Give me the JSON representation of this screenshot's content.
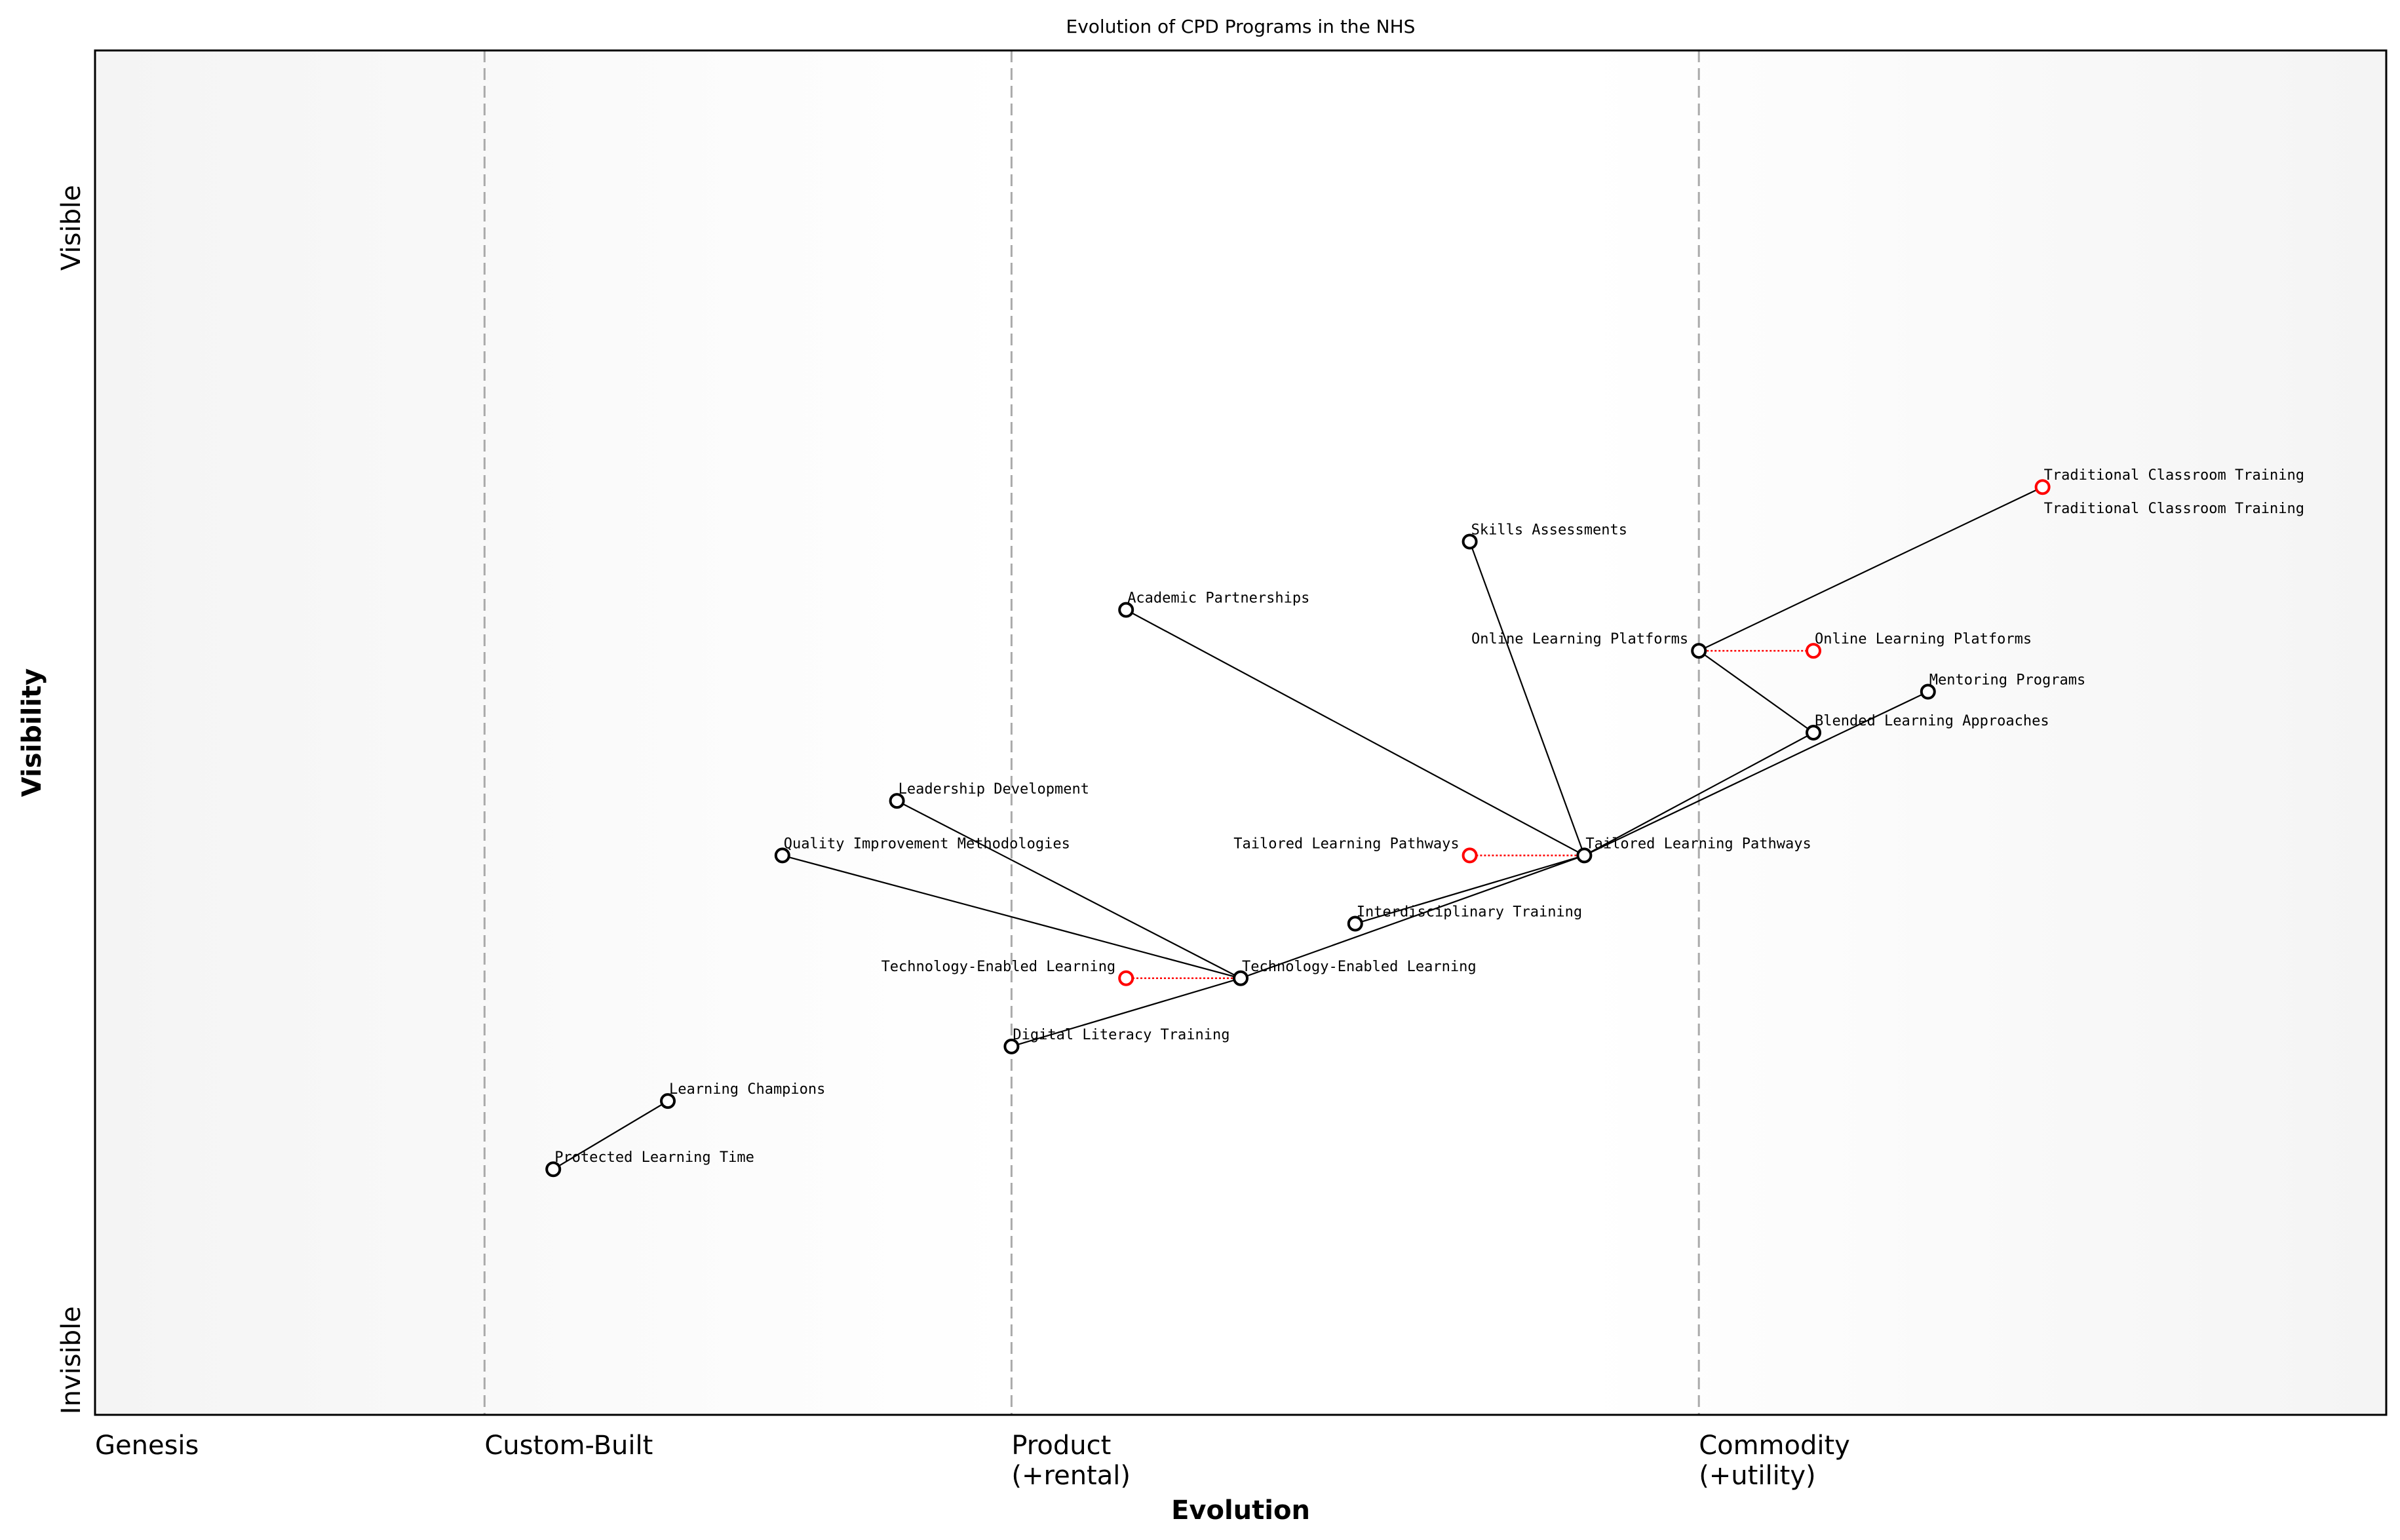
{
  "chart_data": {
    "type": "scatter",
    "subtype": "wardley-map",
    "title": "Evolution of CPD Programs in the NHS",
    "xlabel": "Evolution",
    "ylabel": "Visibility",
    "xlim": [
      0,
      1
    ],
    "ylim": [
      0,
      1
    ],
    "grid": false,
    "x_stages": [
      {
        "label": "Genesis",
        "x": 0.0
      },
      {
        "label": "Custom-Built",
        "x": 0.17
      },
      {
        "label": "Product\n(+rental)",
        "x": 0.4
      },
      {
        "label": "Commodity\n(+utility)",
        "x": 0.7
      }
    ],
    "y_ticks": [
      {
        "label": "Visible",
        "y": 0.87
      },
      {
        "label": "Invisible",
        "y": 0.04
      }
    ],
    "colors": {
      "component": "#000000",
      "evolve": "#ff0000",
      "stage_line": "#aaaaaa",
      "background_edge": "#f4f4f4"
    },
    "components": [
      {
        "name": "Traditional Classroom Training",
        "x": 0.85,
        "y": 0.68
      },
      {
        "name": "Skills Assessments",
        "x": 0.6,
        "y": 0.64
      },
      {
        "name": "Academic Partnerships",
        "x": 0.45,
        "y": 0.59
      },
      {
        "name": "Online Learning Platforms",
        "x": 0.7,
        "y": 0.56
      },
      {
        "name": "Mentoring Programs",
        "x": 0.8,
        "y": 0.53
      },
      {
        "name": "Blended Learning Approaches",
        "x": 0.75,
        "y": 0.5
      },
      {
        "name": "Leadership Development",
        "x": 0.35,
        "y": 0.45
      },
      {
        "name": "Quality Improvement Methodologies",
        "x": 0.3,
        "y": 0.41
      },
      {
        "name": "Tailored Learning Pathways",
        "x": 0.65,
        "y": 0.41
      },
      {
        "name": "Interdisciplinary Training",
        "x": 0.55,
        "y": 0.36
      },
      {
        "name": "Technology-Enabled Learning",
        "x": 0.5,
        "y": 0.32
      },
      {
        "name": "Digital Literacy Training",
        "x": 0.4,
        "y": 0.27
      },
      {
        "name": "Learning Champions",
        "x": 0.25,
        "y": 0.23
      },
      {
        "name": "Protected Learning Time",
        "x": 0.2,
        "y": 0.18
      }
    ],
    "evolutions": [
      {
        "name": "Traditional Classroom Training",
        "from_x": 0.85,
        "to_x": 0.85,
        "y": 0.68
      },
      {
        "name": "Online Learning Platforms",
        "from_x": 0.7,
        "to_x": 0.75,
        "y": 0.56
      },
      {
        "name": "Tailored Learning Pathways",
        "from_x": 0.65,
        "to_x": 0.6,
        "y": 0.41
      },
      {
        "name": "Technology-Enabled Learning",
        "from_x": 0.5,
        "to_x": 0.45,
        "y": 0.32
      }
    ],
    "links": [
      [
        "Online Learning Platforms",
        "Traditional Classroom Training"
      ],
      [
        "Online Learning Platforms",
        "Blended Learning Approaches"
      ],
      [
        "Tailored Learning Pathways",
        "Blended Learning Approaches"
      ],
      [
        "Tailored Learning Pathways",
        "Mentoring Programs"
      ],
      [
        "Tailored Learning Pathways",
        "Skills Assessments"
      ],
      [
        "Tailored Learning Pathways",
        "Academic Partnerships"
      ],
      [
        "Tailored Learning Pathways",
        "Interdisciplinary Training"
      ],
      [
        "Technology-Enabled Learning",
        "Tailored Learning Pathways"
      ],
      [
        "Technology-Enabled Learning",
        "Leadership Development"
      ],
      [
        "Technology-Enabled Learning",
        "Quality Improvement Methodologies"
      ],
      [
        "Technology-Enabled Learning",
        "Digital Literacy Training"
      ],
      [
        "Learning Champions",
        "Protected Learning Time"
      ]
    ]
  }
}
